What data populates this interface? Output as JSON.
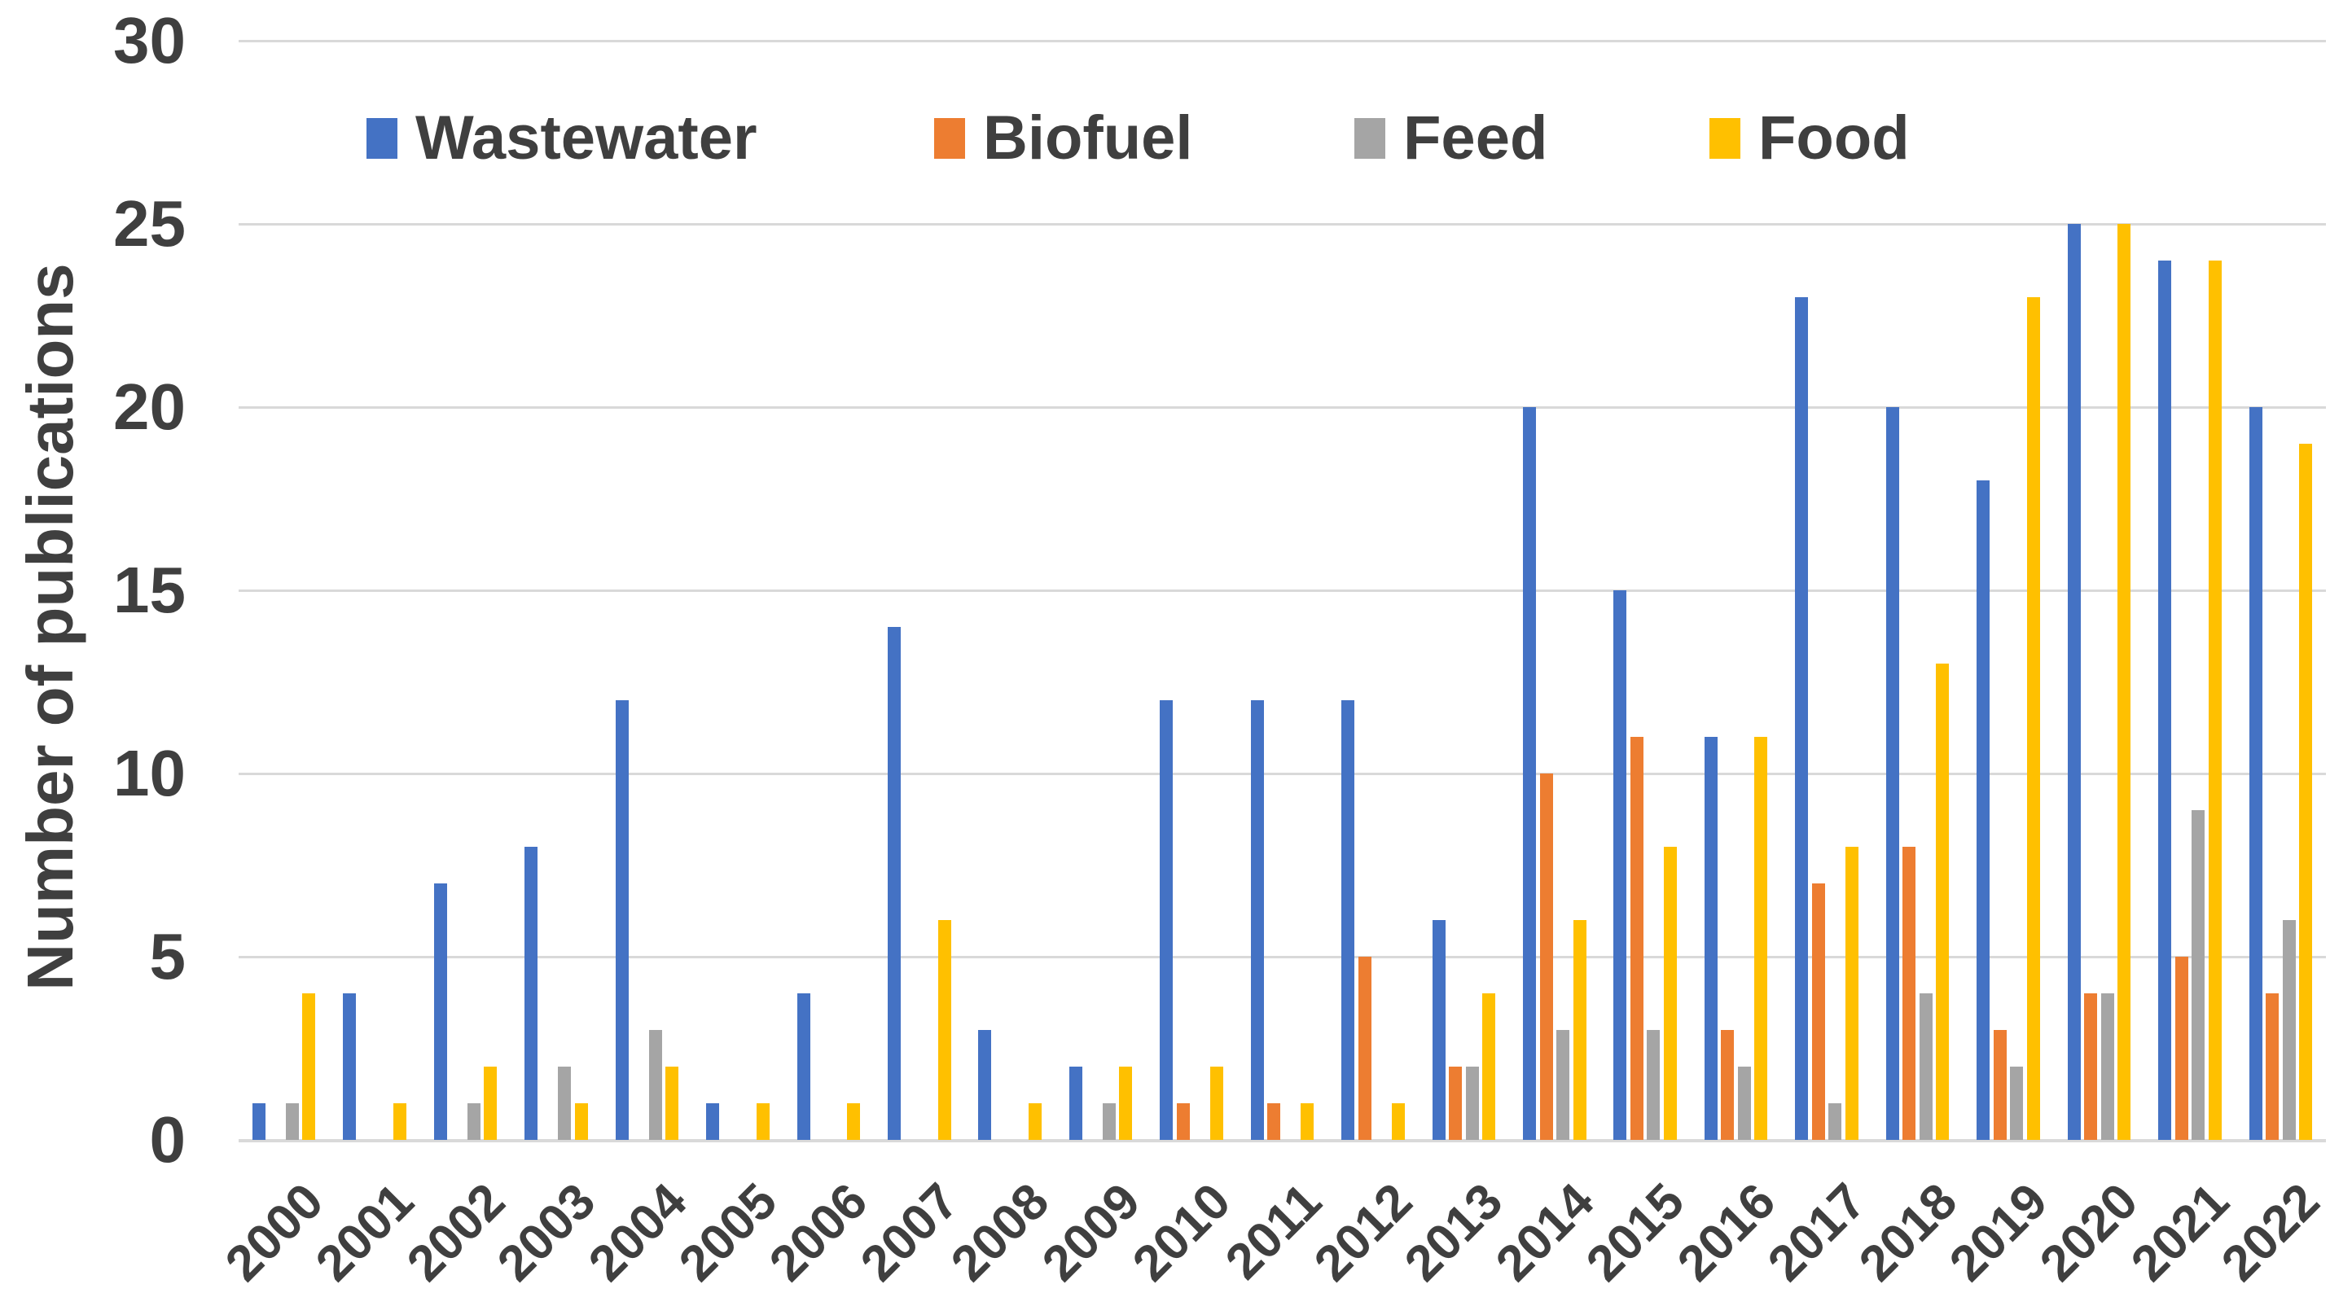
{
  "chart_data": {
    "type": "bar",
    "title": "",
    "xlabel": "",
    "ylabel": "Number of publications",
    "ylim": [
      0,
      30
    ],
    "yticks": [
      0,
      5,
      10,
      15,
      20,
      25,
      30
    ],
    "grid": true,
    "legend_position": "top-inside",
    "categories": [
      "2000",
      "2001",
      "2002",
      "2003",
      "2004",
      "2005",
      "2006",
      "2007",
      "2008",
      "2009",
      "2010",
      "2011",
      "2012",
      "2013",
      "2014",
      "2015",
      "2016",
      "2017",
      "2018",
      "2019",
      "2020",
      "2021",
      "2022"
    ],
    "series": [
      {
        "name": "Wastewater",
        "color": "#4472C4",
        "values": [
          1,
          4,
          7,
          8,
          12,
          1,
          4,
          14,
          3,
          2,
          12,
          12,
          12,
          6,
          20,
          15,
          11,
          23,
          20,
          18,
          25,
          24,
          20
        ]
      },
      {
        "name": "Biofuel",
        "color": "#ED7D31",
        "values": [
          0,
          0,
          0,
          0,
          0,
          0,
          0,
          0,
          0,
          0,
          1,
          1,
          5,
          2,
          10,
          11,
          3,
          7,
          8,
          3,
          4,
          5,
          4
        ]
      },
      {
        "name": "Feed",
        "color": "#A5A5A5",
        "values": [
          1,
          0,
          1,
          2,
          3,
          0,
          0,
          0,
          0,
          1,
          0,
          0,
          0,
          2,
          3,
          3,
          2,
          1,
          4,
          2,
          4,
          9,
          6
        ]
      },
      {
        "name": "Food",
        "color": "#FFC000",
        "values": [
          4,
          1,
          2,
          1,
          2,
          1,
          1,
          6,
          1,
          2,
          2,
          1,
          1,
          4,
          6,
          8,
          11,
          8,
          13,
          23,
          25,
          24,
          19
        ]
      }
    ],
    "colors": {
      "grid": "#D9D9D9",
      "axis_line": "#D9D9D9",
      "text": "#3F3F3F",
      "background": "#FFFFFF"
    }
  }
}
